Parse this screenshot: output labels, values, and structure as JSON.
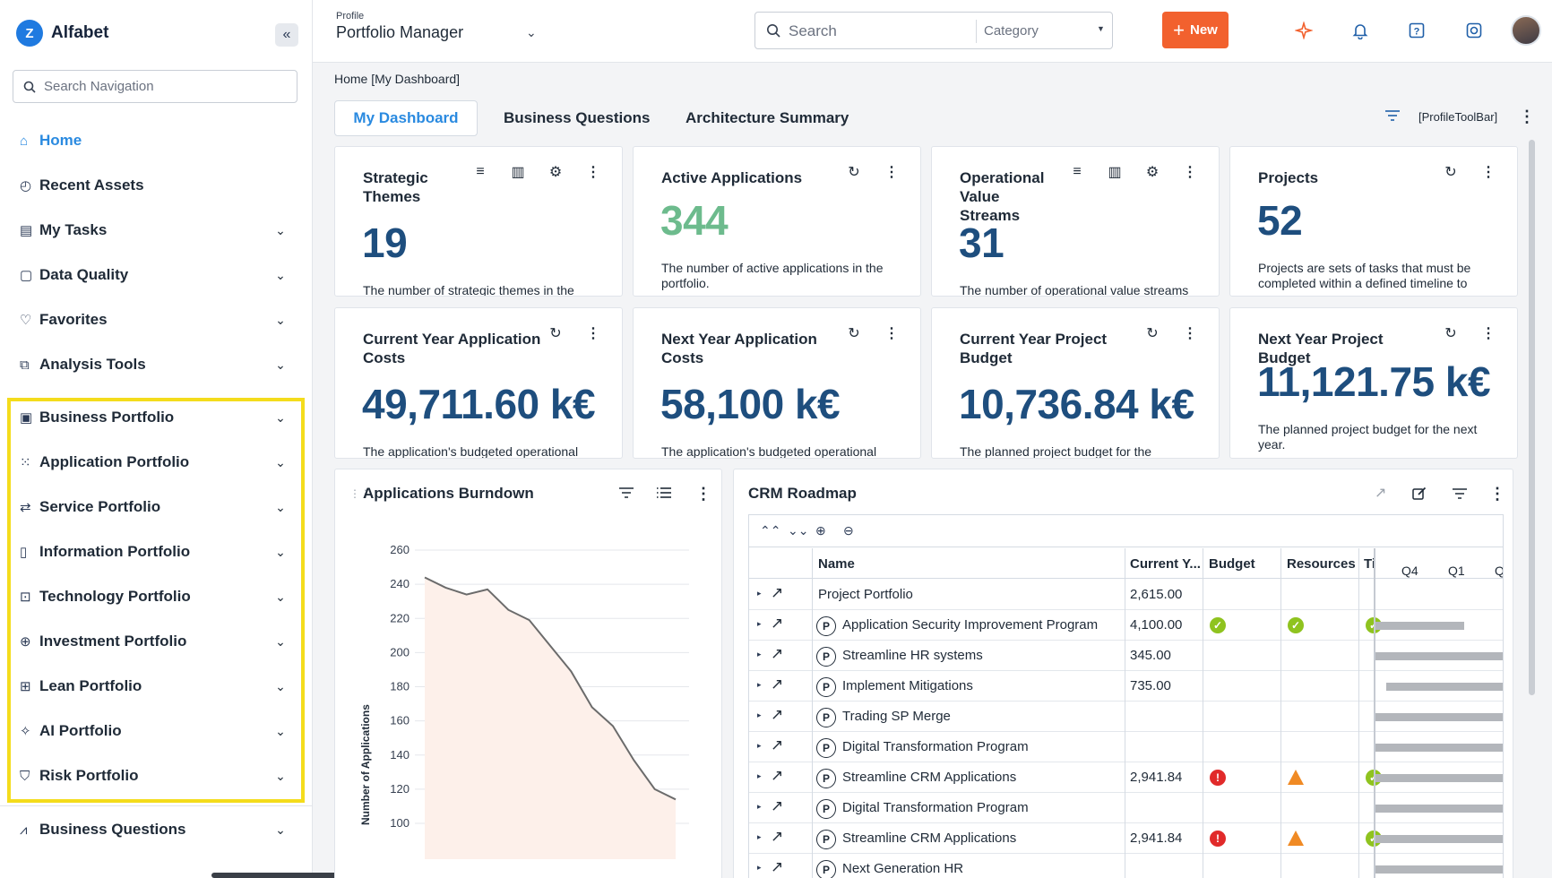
{
  "app": {
    "name": "Alfabet",
    "logo_letter": "Z"
  },
  "sidebar": {
    "search_placeholder": "Search Navigation",
    "items": [
      {
        "label": "Home",
        "icon": "home-icon",
        "active": true
      },
      {
        "label": "Recent Assets",
        "icon": "history-icon"
      },
      {
        "label": "My Tasks",
        "icon": "tasks-icon"
      },
      {
        "label": "Data Quality",
        "icon": "data-quality-icon"
      },
      {
        "label": "Favorites",
        "icon": "heart-icon"
      },
      {
        "label": "Analysis Tools",
        "icon": "analysis-icon"
      },
      {
        "label": "Business Portfolio",
        "icon": "briefcase-icon"
      },
      {
        "label": "Application Portfolio",
        "icon": "grid-dots-icon"
      },
      {
        "label": "Service Portfolio",
        "icon": "service-icon"
      },
      {
        "label": "Information Portfolio",
        "icon": "book-icon"
      },
      {
        "label": "Technology Portfolio",
        "icon": "terminal-icon"
      },
      {
        "label": "Investment Portfolio",
        "icon": "investment-icon"
      },
      {
        "label": "Lean Portfolio",
        "icon": "lean-icon"
      },
      {
        "label": "AI Portfolio",
        "icon": "sparkle-icon"
      },
      {
        "label": "Risk Portfolio",
        "icon": "shield-icon"
      },
      {
        "label": "Business Questions",
        "icon": "chart-line-icon"
      }
    ]
  },
  "topbar": {
    "profile_caption": "Profile",
    "profile_name": "Portfolio Manager",
    "search_placeholder": "Search",
    "category_placeholder": "Category",
    "new_label": "New"
  },
  "breadcrumb": "Home [My Dashboard]",
  "tabs": [
    "My Dashboard",
    "Business Questions",
    "Architecture Summary"
  ],
  "toolbar_label": "[ProfileToolBar]",
  "cards": [
    {
      "title": "Strategic Themes",
      "value": "19",
      "desc": "The number of strategic themes in the"
    },
    {
      "title": "Active Applications",
      "value": "344",
      "desc": "The number of active applications in the portfolio."
    },
    {
      "title": "Operational Value Streams",
      "value": "31",
      "desc": "The number of operational value streams"
    },
    {
      "title": "Projects",
      "value": "52",
      "desc": "Projects are sets of tasks that must be completed within a defined timeline to"
    },
    {
      "title": "Current Year Application Costs",
      "value": "49,711.60 k€",
      "desc": "The application's budgeted operational"
    },
    {
      "title": "Next Year Application Costs",
      "value": "58,100 k€",
      "desc": "The application's budgeted operational"
    },
    {
      "title": "Current Year Project Budget",
      "value": "10,736.84 k€",
      "desc": "The planned project budget for the"
    },
    {
      "title": "Next Year Project Budget",
      "value": "11,121.75 k€",
      "desc": "The planned project budget for the next year."
    }
  ],
  "burndown": {
    "title": "Applications Burndown",
    "chart_data": {
      "type": "area",
      "ylabel": "Number of Applications",
      "ylim": [
        100,
        260
      ],
      "yticks": [
        260,
        240,
        220,
        200,
        180,
        160,
        140,
        120,
        100
      ],
      "values": [
        244,
        238,
        234,
        237,
        225,
        219,
        204,
        189,
        168,
        157,
        137,
        120,
        114
      ],
      "fill_color": "#fdf0ea",
      "line_color": "#6b6b6b"
    }
  },
  "roadmap": {
    "title": "CRM Roadmap",
    "columns": [
      "Name",
      "Current Y...",
      "Budget",
      "Resources",
      "Ti"
    ],
    "quarters": [
      "Q4",
      "Q1",
      "Q"
    ],
    "rows": [
      {
        "name": "Project Portfolio",
        "current_year": "2,615.00",
        "badge": false,
        "budget": "",
        "resources": "",
        "time": "",
        "bar": null
      },
      {
        "name": "Application Security Improvement Program",
        "current_year": "4,100.00",
        "badge": true,
        "budget": "ok",
        "resources": "ok",
        "time": "ok",
        "bar": [
          0,
          0.69
        ]
      },
      {
        "name": "Streamline HR systems",
        "current_year": "345.00",
        "badge": true,
        "budget": "",
        "resources": "",
        "time": "",
        "bar": [
          0,
          1
        ]
      },
      {
        "name": "Implement Mitigations",
        "current_year": "735.00",
        "badge": true,
        "budget": "",
        "resources": "",
        "time": "",
        "bar": [
          0.08,
          1
        ]
      },
      {
        "name": "Trading SP Merge",
        "current_year": "",
        "badge": true,
        "budget": "",
        "resources": "",
        "time": "",
        "bar": [
          0,
          1
        ]
      },
      {
        "name": "Digital Transformation Program",
        "current_year": "",
        "badge": true,
        "budget": "",
        "resources": "",
        "time": "",
        "bar": [
          0,
          1
        ]
      },
      {
        "name": "Streamline CRM Applications",
        "current_year": "2,941.84",
        "badge": true,
        "budget": "err",
        "resources": "warn",
        "time": "ok",
        "bar": [
          0,
          1
        ]
      },
      {
        "name": "Digital Transformation Program",
        "current_year": "",
        "badge": true,
        "budget": "",
        "resources": "",
        "time": "",
        "bar": [
          0,
          1
        ]
      },
      {
        "name": "Streamline CRM Applications",
        "current_year": "2,941.84",
        "badge": true,
        "budget": "err",
        "resources": "warn",
        "time": "ok",
        "bar": [
          0,
          1
        ]
      },
      {
        "name": "Next Generation HR",
        "current_year": "",
        "badge": true,
        "budget": "",
        "resources": "",
        "time": "",
        "bar": [
          0,
          1
        ]
      }
    ]
  }
}
